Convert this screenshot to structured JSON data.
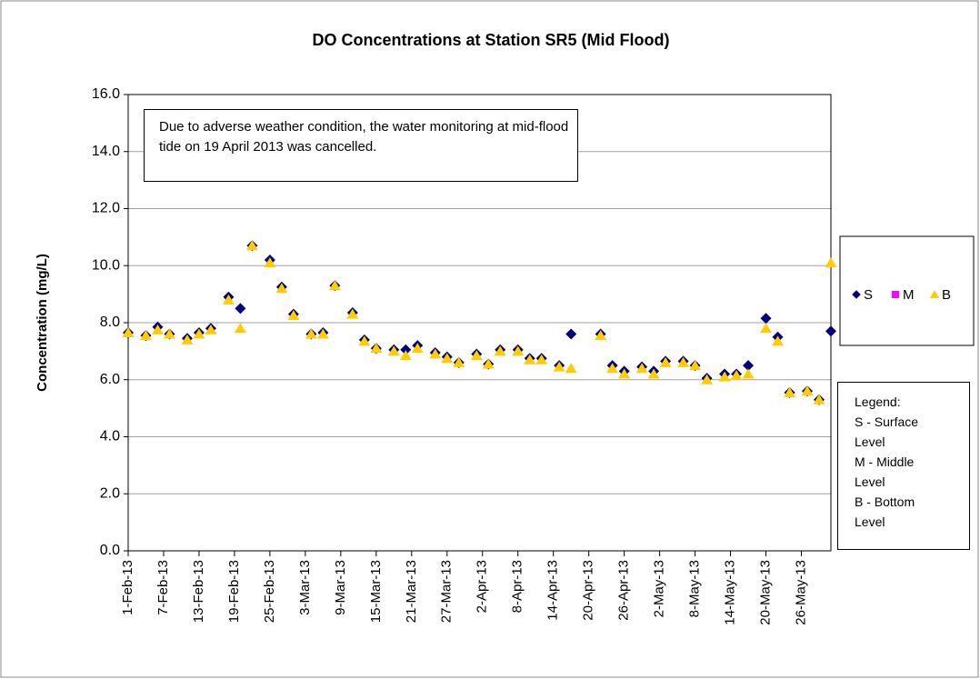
{
  "chart_data": {
    "type": "scatter",
    "title": "DO Concentrations at Station SR5 (Mid Flood)",
    "y_label": "Concentration (mg/L)",
    "annotation": "Due to adverse weather condition, the  water monitoring at mid-flood tide on 19 April 2013 was cancelled.",
    "legend_note": [
      "Legend:",
      "S - Surface Level",
      "M - Middle Level",
      "B - Bottom Level"
    ],
    "x": [
      "2013-02-01",
      "2013-02-04",
      "2013-02-06",
      "2013-02-08",
      "2013-02-11",
      "2013-02-13",
      "2013-02-15",
      "2013-02-18",
      "2013-02-20",
      "2013-02-22",
      "2013-02-25",
      "2013-02-27",
      "2013-03-01",
      "2013-03-04",
      "2013-03-06",
      "2013-03-08",
      "2013-03-11",
      "2013-03-13",
      "2013-03-15",
      "2013-03-18",
      "2013-03-20",
      "2013-03-22",
      "2013-03-25",
      "2013-03-27",
      "2013-03-29",
      "2013-04-01",
      "2013-04-03",
      "2013-04-05",
      "2013-04-08",
      "2013-04-10",
      "2013-04-12",
      "2013-04-15",
      "2013-04-17",
      "2013-04-22",
      "2013-04-24",
      "2013-04-26",
      "2013-04-29",
      "2013-05-01",
      "2013-05-03",
      "2013-05-06",
      "2013-05-08",
      "2013-05-10",
      "2013-05-13",
      "2013-05-15",
      "2013-05-17",
      "2013-05-20",
      "2013-05-22",
      "2013-05-24",
      "2013-05-27",
      "2013-05-29",
      "2013-05-31"
    ],
    "series": [
      {
        "name": "S",
        "color": "#000080",
        "marker": "diamond",
        "values": [
          7.65,
          7.55,
          7.85,
          7.6,
          7.45,
          7.65,
          7.8,
          8.9,
          8.5,
          10.7,
          10.2,
          9.25,
          8.3,
          7.6,
          7.65,
          9.3,
          8.35,
          7.4,
          7.1,
          7.05,
          7.05,
          7.2,
          6.95,
          6.8,
          6.6,
          6.9,
          6.55,
          7.05,
          7.05,
          6.75,
          6.75,
          6.5,
          7.6,
          7.6,
          6.5,
          6.3,
          6.45,
          6.3,
          6.65,
          6.65,
          6.5,
          6.05,
          6.2,
          6.2,
          6.5,
          8.15,
          7.5,
          5.55,
          5.6,
          5.3,
          7.7
        ]
      },
      {
        "name": "M",
        "color": "#FF00FF",
        "marker": "square",
        "values": [
          null,
          null,
          null,
          null,
          null,
          null,
          null,
          null,
          null,
          null,
          null,
          null,
          null,
          null,
          null,
          null,
          null,
          null,
          null,
          null,
          null,
          null,
          null,
          null,
          null,
          null,
          null,
          null,
          null,
          null,
          null,
          null,
          null,
          null,
          null,
          null,
          null,
          null,
          null,
          null,
          null,
          null,
          null,
          null,
          null,
          null,
          null,
          null,
          null,
          null,
          null
        ]
      },
      {
        "name": "B",
        "color": "#FFCC00",
        "marker": "triangle",
        "values": [
          7.65,
          7.55,
          7.75,
          7.6,
          7.4,
          7.6,
          7.75,
          8.8,
          7.8,
          10.7,
          10.1,
          9.2,
          8.25,
          7.6,
          7.6,
          9.3,
          8.3,
          7.35,
          7.1,
          7.0,
          6.85,
          7.1,
          6.9,
          6.75,
          6.6,
          6.85,
          6.55,
          7.0,
          7.0,
          6.7,
          6.7,
          6.45,
          6.4,
          7.55,
          6.4,
          6.2,
          6.4,
          6.2,
          6.6,
          6.6,
          6.5,
          6.0,
          6.1,
          6.15,
          6.2,
          7.8,
          7.35,
          5.55,
          5.6,
          5.3,
          10.1
        ]
      }
    ],
    "xlim": [
      "2013-02-01",
      "2013-05-31"
    ],
    "xticks": [
      {
        "value": "2013-02-01",
        "label": "1-Feb-13"
      },
      {
        "value": "2013-02-07",
        "label": "7-Feb-13"
      },
      {
        "value": "2013-02-13",
        "label": "13-Feb-13"
      },
      {
        "value": "2013-02-19",
        "label": "19-Feb-13"
      },
      {
        "value": "2013-02-25",
        "label": "25-Feb-13"
      },
      {
        "value": "2013-03-03",
        "label": "3-Mar-13"
      },
      {
        "value": "2013-03-09",
        "label": "9-Mar-13"
      },
      {
        "value": "2013-03-15",
        "label": "15-Mar-13"
      },
      {
        "value": "2013-03-21",
        "label": "21-Mar-13"
      },
      {
        "value": "2013-03-27",
        "label": "27-Mar-13"
      },
      {
        "value": "2013-04-02",
        "label": "2-Apr-13"
      },
      {
        "value": "2013-04-08",
        "label": "8-Apr-13"
      },
      {
        "value": "2013-04-14",
        "label": "14-Apr-13"
      },
      {
        "value": "2013-04-20",
        "label": "20-Apr-13"
      },
      {
        "value": "2013-04-26",
        "label": "26-Apr-13"
      },
      {
        "value": "2013-05-02",
        "label": "2-May-13"
      },
      {
        "value": "2013-05-08",
        "label": "8-May-13"
      },
      {
        "value": "2013-05-14",
        "label": "14-May-13"
      },
      {
        "value": "2013-05-20",
        "label": "20-May-13"
      },
      {
        "value": "2013-05-26",
        "label": "26-May-13"
      }
    ],
    "ylim": [
      0,
      16
    ],
    "yticks": [
      {
        "value": 0,
        "label": "0.0"
      },
      {
        "value": 2,
        "label": "2.0"
      },
      {
        "value": 4,
        "label": "4.0"
      },
      {
        "value": 6,
        "label": "6.0"
      },
      {
        "value": 8,
        "label": "8.0"
      },
      {
        "value": 10,
        "label": "10.0"
      },
      {
        "value": 12,
        "label": "12.0"
      },
      {
        "value": 14,
        "label": "14.0"
      },
      {
        "value": 16,
        "label": "16.0"
      }
    ],
    "grid": true,
    "legend": "right"
  }
}
